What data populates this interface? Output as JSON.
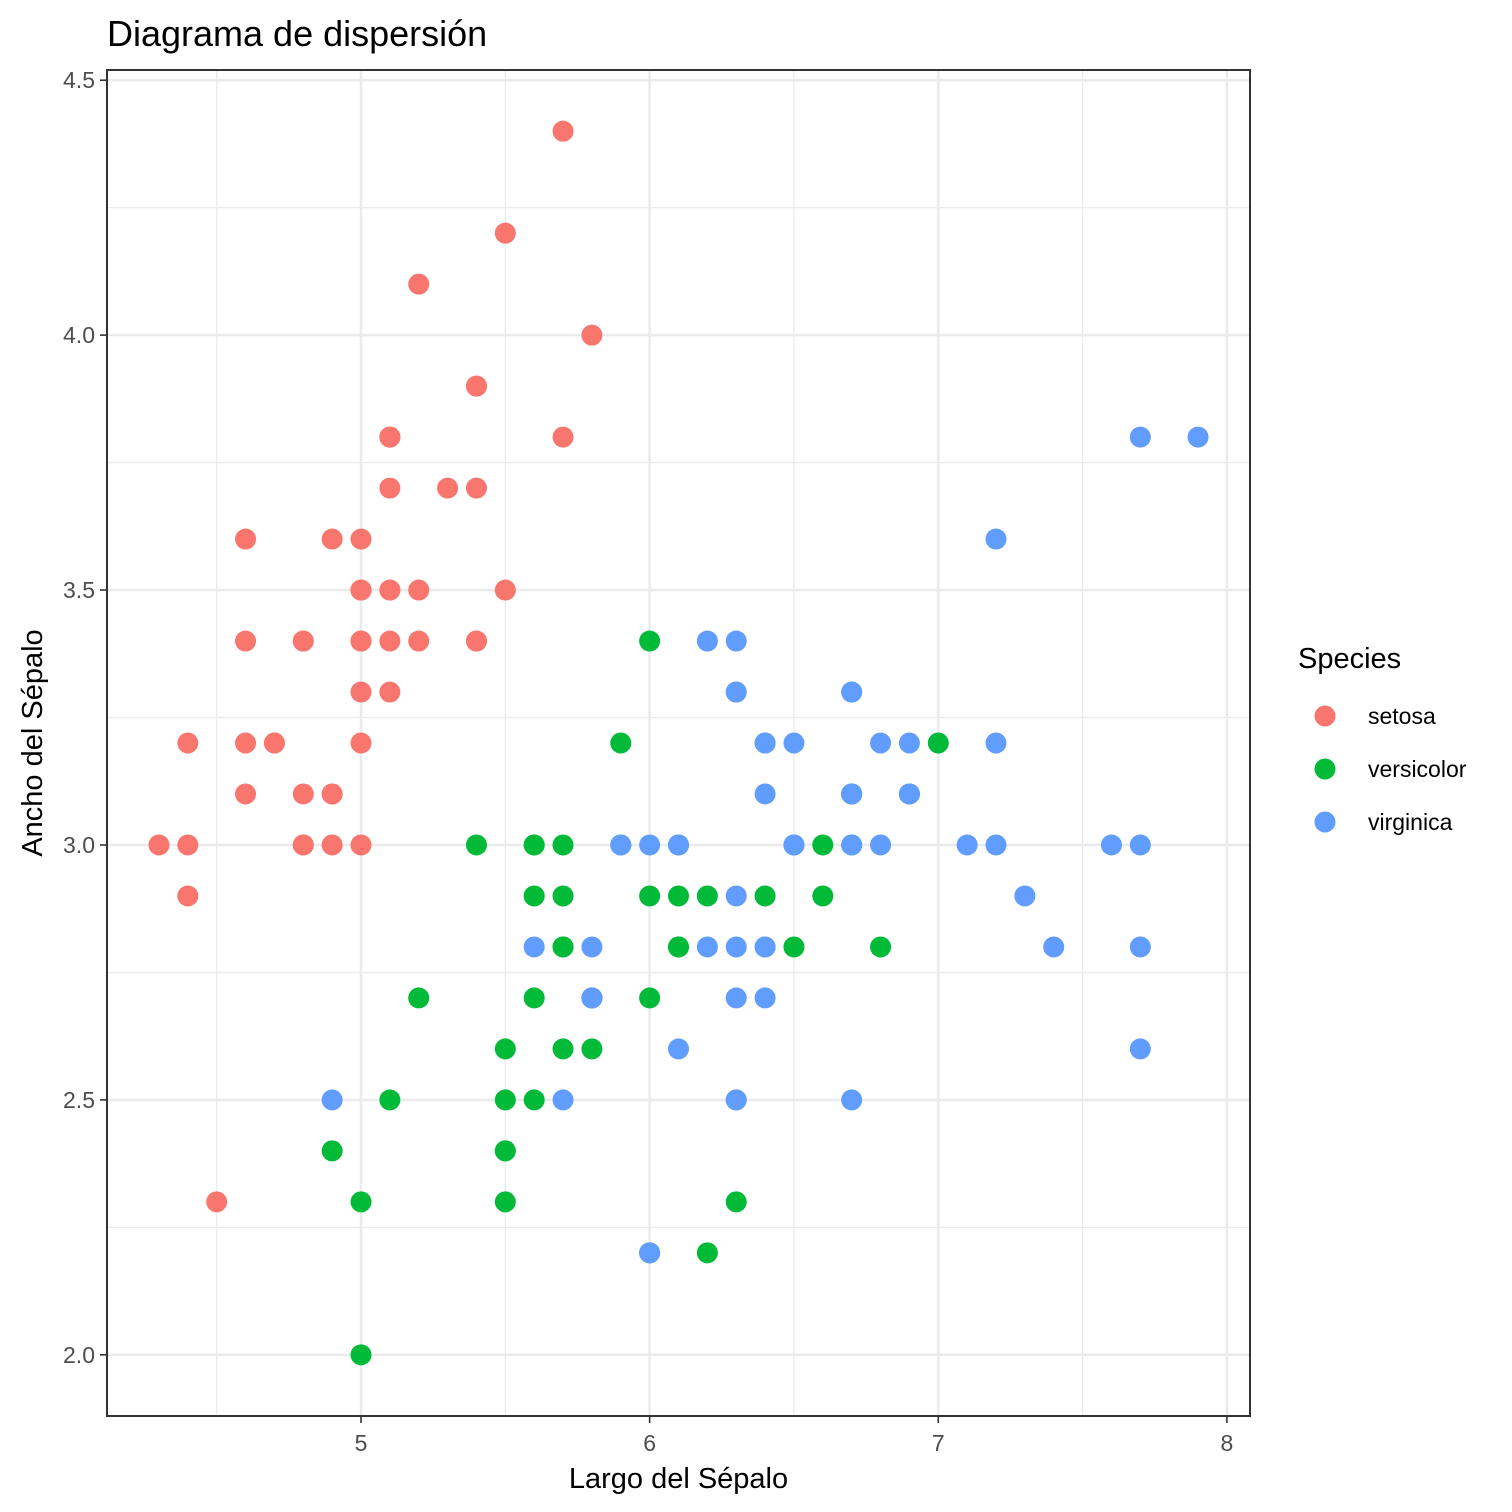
{
  "chart_data": {
    "type": "scatter",
    "title": "Diagrama de dispersión",
    "xlabel": "Largo del Sépalo",
    "ylabel": "Ancho del Sépalo",
    "xlim": [
      4.12,
      8.08
    ],
    "ylim": [
      1.88,
      4.52
    ],
    "xticks": [
      5,
      6,
      7,
      8
    ],
    "xtick_labels": [
      "5",
      "6",
      "7",
      "8"
    ],
    "yticks": [
      2.0,
      2.5,
      3.0,
      3.5,
      4.0,
      4.5
    ],
    "ytick_labels": [
      "2.0",
      "2.5",
      "3.0",
      "3.5",
      "4.0",
      "4.5"
    ],
    "grid": true,
    "legend": {
      "title": "Species",
      "position": "right"
    },
    "series": [
      {
        "name": "setosa",
        "color": "#F8766D",
        "points": [
          [
            5.1,
            3.5
          ],
          [
            4.9,
            3.0
          ],
          [
            4.7,
            3.2
          ],
          [
            4.6,
            3.1
          ],
          [
            5.0,
            3.6
          ],
          [
            5.4,
            3.9
          ],
          [
            4.6,
            3.4
          ],
          [
            5.0,
            3.4
          ],
          [
            4.4,
            2.9
          ],
          [
            4.9,
            3.1
          ],
          [
            5.4,
            3.7
          ],
          [
            4.8,
            3.4
          ],
          [
            4.8,
            3.0
          ],
          [
            4.3,
            3.0
          ],
          [
            5.8,
            4.0
          ],
          [
            5.7,
            4.4
          ],
          [
            5.4,
            3.9
          ],
          [
            5.1,
            3.5
          ],
          [
            5.7,
            3.8
          ],
          [
            5.1,
            3.8
          ],
          [
            5.4,
            3.4
          ],
          [
            5.1,
            3.7
          ],
          [
            4.6,
            3.6
          ],
          [
            5.1,
            3.3
          ],
          [
            4.8,
            3.4
          ],
          [
            5.0,
            3.0
          ],
          [
            5.0,
            3.4
          ],
          [
            5.2,
            3.5
          ],
          [
            5.2,
            3.4
          ],
          [
            4.7,
            3.2
          ],
          [
            4.8,
            3.1
          ],
          [
            5.4,
            3.4
          ],
          [
            5.2,
            4.1
          ],
          [
            5.5,
            4.2
          ],
          [
            4.9,
            3.1
          ],
          [
            5.0,
            3.2
          ],
          [
            5.5,
            3.5
          ],
          [
            4.9,
            3.6
          ],
          [
            4.4,
            3.0
          ],
          [
            5.1,
            3.4
          ],
          [
            5.0,
            3.5
          ],
          [
            4.5,
            2.3
          ],
          [
            4.4,
            3.2
          ],
          [
            5.0,
            3.5
          ],
          [
            5.1,
            3.8
          ],
          [
            4.8,
            3.0
          ],
          [
            5.1,
            3.8
          ],
          [
            4.6,
            3.2
          ],
          [
            5.3,
            3.7
          ],
          [
            5.0,
            3.3
          ]
        ]
      },
      {
        "name": "versicolor",
        "color": "#00BA38",
        "points": [
          [
            7.0,
            3.2
          ],
          [
            6.4,
            3.2
          ],
          [
            6.9,
            3.1
          ],
          [
            5.5,
            2.3
          ],
          [
            6.5,
            2.8
          ],
          [
            5.7,
            2.8
          ],
          [
            6.3,
            3.3
          ],
          [
            4.9,
            2.4
          ],
          [
            6.6,
            2.9
          ],
          [
            5.2,
            2.7
          ],
          [
            5.0,
            2.0
          ],
          [
            5.9,
            3.0
          ],
          [
            6.0,
            2.2
          ],
          [
            6.1,
            2.9
          ],
          [
            5.6,
            2.9
          ],
          [
            6.7,
            3.1
          ],
          [
            5.6,
            3.0
          ],
          [
            5.8,
            2.7
          ],
          [
            6.2,
            2.2
          ],
          [
            5.6,
            2.5
          ],
          [
            5.9,
            3.2
          ],
          [
            6.1,
            2.8
          ],
          [
            6.3,
            2.5
          ],
          [
            6.1,
            2.8
          ],
          [
            6.4,
            2.9
          ],
          [
            6.6,
            3.0
          ],
          [
            6.8,
            2.8
          ],
          [
            6.7,
            3.0
          ],
          [
            6.0,
            2.9
          ],
          [
            5.7,
            2.6
          ],
          [
            5.5,
            2.4
          ],
          [
            5.5,
            2.4
          ],
          [
            5.8,
            2.7
          ],
          [
            6.0,
            2.7
          ],
          [
            5.4,
            3.0
          ],
          [
            6.0,
            3.4
          ],
          [
            6.7,
            3.1
          ],
          [
            6.3,
            2.3
          ],
          [
            5.6,
            3.0
          ],
          [
            5.5,
            2.5
          ],
          [
            5.5,
            2.6
          ],
          [
            6.1,
            3.0
          ],
          [
            5.8,
            2.6
          ],
          [
            5.0,
            2.3
          ],
          [
            5.6,
            2.7
          ],
          [
            5.7,
            3.0
          ],
          [
            5.7,
            2.9
          ],
          [
            6.2,
            2.9
          ],
          [
            5.1,
            2.5
          ],
          [
            5.7,
            2.8
          ]
        ]
      },
      {
        "name": "virginica",
        "color": "#619CFF",
        "points": [
          [
            6.3,
            3.3
          ],
          [
            5.8,
            2.7
          ],
          [
            7.1,
            3.0
          ],
          [
            6.3,
            2.9
          ],
          [
            6.5,
            3.0
          ],
          [
            7.6,
            3.0
          ],
          [
            4.9,
            2.5
          ],
          [
            7.3,
            2.9
          ],
          [
            6.7,
            2.5
          ],
          [
            7.2,
            3.6
          ],
          [
            6.5,
            3.2
          ],
          [
            6.4,
            2.7
          ],
          [
            6.8,
            3.0
          ],
          [
            5.7,
            2.5
          ],
          [
            5.8,
            2.8
          ],
          [
            6.4,
            3.2
          ],
          [
            6.5,
            3.0
          ],
          [
            7.7,
            3.8
          ],
          [
            7.7,
            2.6
          ],
          [
            6.0,
            2.2
          ],
          [
            6.9,
            3.2
          ],
          [
            5.6,
            2.8
          ],
          [
            7.7,
            2.8
          ],
          [
            6.3,
            2.7
          ],
          [
            6.7,
            3.3
          ],
          [
            7.2,
            3.2
          ],
          [
            6.2,
            2.8
          ],
          [
            6.1,
            3.0
          ],
          [
            6.4,
            2.8
          ],
          [
            7.2,
            3.0
          ],
          [
            7.4,
            2.8
          ],
          [
            7.9,
            3.8
          ],
          [
            6.4,
            2.8
          ],
          [
            6.3,
            2.8
          ],
          [
            6.1,
            2.6
          ],
          [
            7.7,
            3.0
          ],
          [
            6.3,
            3.4
          ],
          [
            6.4,
            3.1
          ],
          [
            6.0,
            3.0
          ],
          [
            6.9,
            3.1
          ],
          [
            6.7,
            3.1
          ],
          [
            6.9,
            3.1
          ],
          [
            5.8,
            2.7
          ],
          [
            6.8,
            3.2
          ],
          [
            6.7,
            3.3
          ],
          [
            6.7,
            3.0
          ],
          [
            6.3,
            2.5
          ],
          [
            6.5,
            3.0
          ],
          [
            6.2,
            3.4
          ],
          [
            5.9,
            3.0
          ]
        ]
      }
    ]
  }
}
